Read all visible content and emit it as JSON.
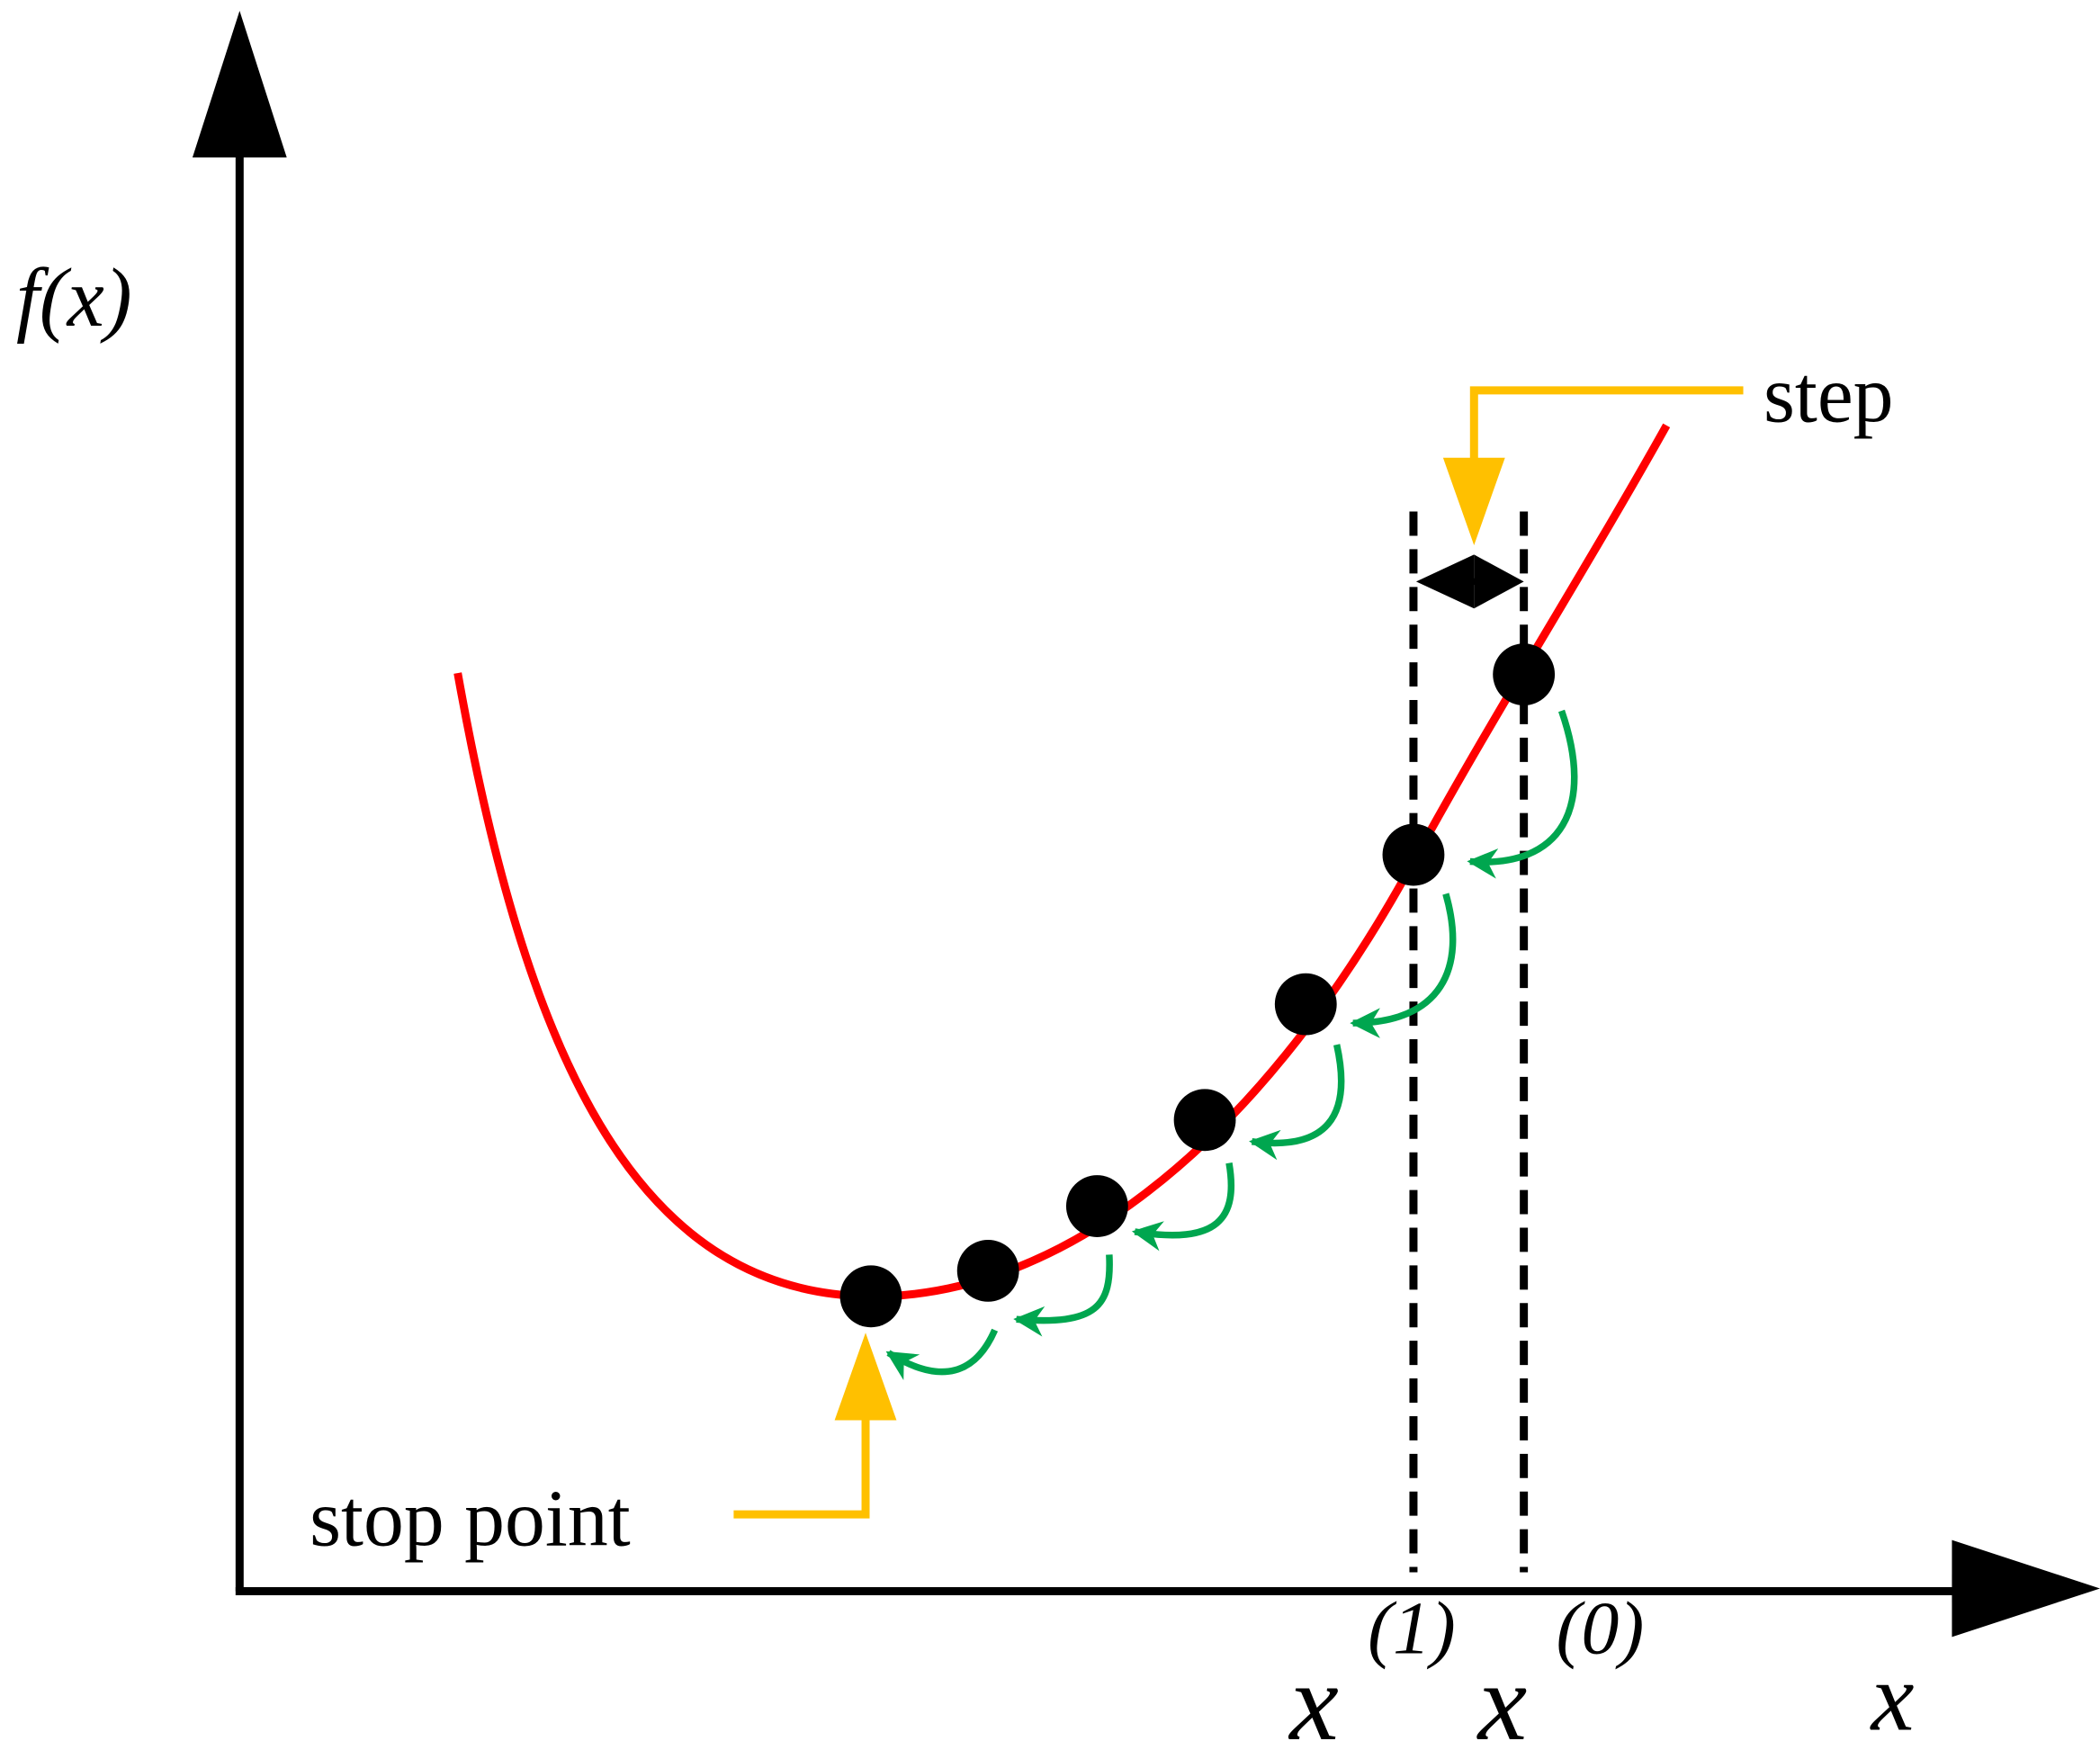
{
  "axes": {
    "y_label": "f(x)",
    "x_label": "x"
  },
  "annotations": {
    "step": "step",
    "stop_point": "stop point"
  },
  "markers": [
    {
      "base": "x",
      "superscript": "(1)"
    },
    {
      "base": "x",
      "superscript": "(0)"
    }
  ]
}
